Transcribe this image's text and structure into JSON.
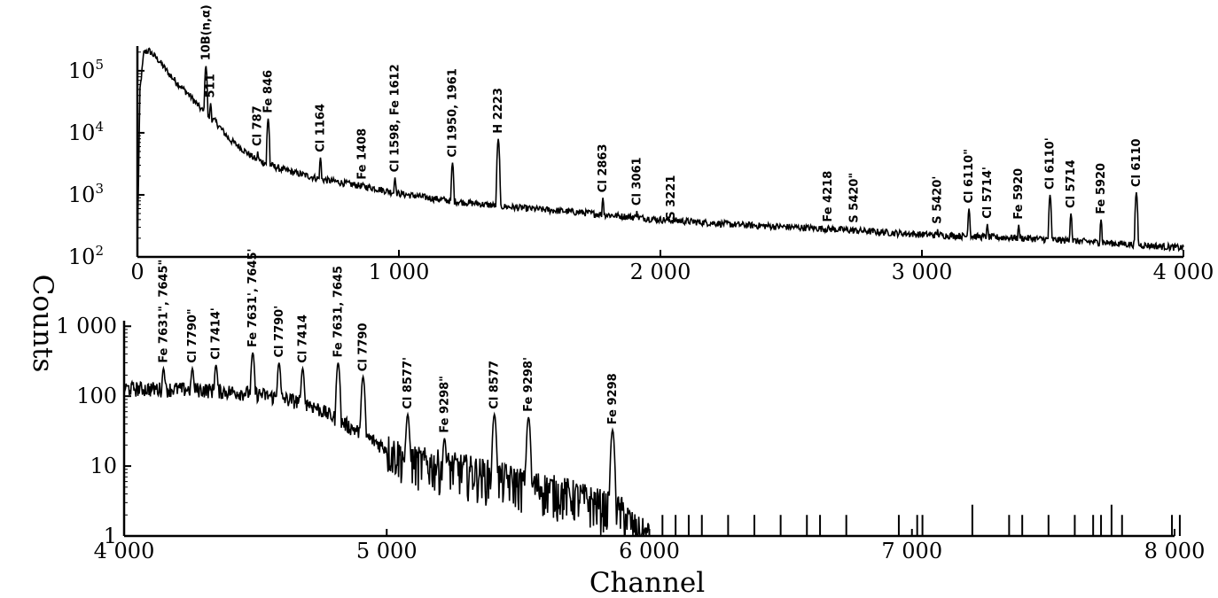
{
  "chart_data": [
    {
      "type": "line",
      "panel": "upper",
      "xlabel": "",
      "ylabel": "Counts",
      "xlim": [
        0,
        4000
      ],
      "ylim": [
        100,
        250000
      ],
      "y_scale": "log",
      "grid": false,
      "x_ticks": [
        {
          "value": 0,
          "label": "0"
        },
        {
          "value": 1000,
          "label": "1 000"
        },
        {
          "value": 2000,
          "label": "2 000"
        },
        {
          "value": 3000,
          "label": "3 000"
        },
        {
          "value": 4000,
          "label": "4 000"
        }
      ],
      "y_ticks": [
        {
          "value": 100,
          "base": "10",
          "exp": "2"
        },
        {
          "value": 1000,
          "base": "10",
          "exp": "3"
        },
        {
          "value": 10000,
          "base": "10",
          "exp": "4"
        },
        {
          "value": 100000,
          "base": "10",
          "exp": "5"
        }
      ],
      "baseline": [
        [
          0,
          150
        ],
        [
          10,
          50000
        ],
        [
          25,
          200000
        ],
        [
          45,
          210000
        ],
        [
          80,
          150000
        ],
        [
          130,
          80000
        ],
        [
          200,
          40000
        ],
        [
          260,
          20000
        ],
        [
          300,
          15000
        ],
        [
          350,
          8000
        ],
        [
          450,
          3800
        ],
        [
          550,
          2600
        ],
        [
          700,
          1800
        ],
        [
          900,
          1300
        ],
        [
          1000,
          1050
        ],
        [
          1200,
          800
        ],
        [
          1400,
          650
        ],
        [
          1700,
          520
        ],
        [
          2000,
          400
        ],
        [
          2300,
          330
        ],
        [
          2600,
          290
        ],
        [
          3000,
          230
        ],
        [
          3400,
          200
        ],
        [
          3700,
          170
        ],
        [
          3900,
          150
        ],
        [
          4000,
          140
        ]
      ],
      "peaks": [
        {
          "x": 262,
          "y": 120000,
          "label": "10B(n,α)"
        },
        {
          "x": 280,
          "y": 30000,
          "label": "511"
        },
        {
          "x": 460,
          "y": 5000,
          "label": "Cl 787"
        },
        {
          "x": 500,
          "y": 17000,
          "label": "Fe 846"
        },
        {
          "x": 700,
          "y": 4000,
          "label": "Cl 1164"
        },
        {
          "x": 860,
          "y": 1450,
          "label": "Fe 1408"
        },
        {
          "x": 985,
          "y": 1900,
          "label": "Cl 1598, Fe 1612"
        },
        {
          "x": 1205,
          "y": 3300,
          "label": "Cl 1950, 1961"
        },
        {
          "x": 1380,
          "y": 8000,
          "label": "H 2223"
        },
        {
          "x": 1780,
          "y": 900,
          "label": "Cl 2863"
        },
        {
          "x": 1910,
          "y": 550,
          "label": "Cl 3061"
        },
        {
          "x": 2040,
          "y": 330,
          "label": "S 3221"
        },
        {
          "x": 2640,
          "y": 300,
          "label": "Fe 4218"
        },
        {
          "x": 2740,
          "y": 290,
          "label": "S 5420\""
        },
        {
          "x": 3060,
          "y": 280,
          "label": "S 5420'"
        },
        {
          "x": 3180,
          "y": 600,
          "label": "Cl 6110\""
        },
        {
          "x": 3250,
          "y": 340,
          "label": "Cl 5714'"
        },
        {
          "x": 3370,
          "y": 330,
          "label": "Fe 5920"
        },
        {
          "x": 3490,
          "y": 1000,
          "label": "Cl 6110'"
        },
        {
          "x": 3570,
          "y": 500,
          "label": "Cl 5714"
        },
        {
          "x": 3685,
          "y": 400,
          "label": "Fe 5920"
        },
        {
          "x": 3820,
          "y": 1100,
          "label": "Cl 6110"
        }
      ]
    },
    {
      "type": "line",
      "panel": "lower",
      "xlabel": "Channel",
      "ylabel": "Counts",
      "xlim": [
        4000,
        8000
      ],
      "ylim": [
        1,
        1200
      ],
      "y_scale": "log",
      "grid": false,
      "x_ticks": [
        {
          "value": 4000,
          "label": "4 000"
        },
        {
          "value": 5000,
          "label": "5 000"
        },
        {
          "value": 6000,
          "label": "6 000"
        },
        {
          "value": 7000,
          "label": "7 000"
        },
        {
          "value": 8000,
          "label": "8 000"
        }
      ],
      "y_ticks": [
        {
          "value": 1,
          "label": "1"
        },
        {
          "value": 10,
          "label": "10"
        },
        {
          "value": 100,
          "label": "100"
        },
        {
          "value": 1000,
          "label": "1 000"
        }
      ],
      "baseline": [
        [
          4000,
          130
        ],
        [
          4300,
          125
        ],
        [
          4500,
          110
        ],
        [
          4700,
          80
        ],
        [
          4800,
          50
        ],
        [
          4900,
          30
        ],
        [
          5000,
          18
        ],
        [
          5100,
          12
        ],
        [
          5300,
          9
        ],
        [
          5500,
          6
        ],
        [
          5700,
          4
        ],
        [
          5800,
          3
        ],
        [
          5900,
          2.2
        ],
        [
          5950,
          1.2
        ],
        [
          6000,
          1
        ]
      ],
      "peaks": [
        {
          "x": 4150,
          "y": 250,
          "label": "Fe 7631\", 7645\""
        },
        {
          "x": 4260,
          "y": 250,
          "label": "Cl 7790\""
        },
        {
          "x": 4350,
          "y": 280,
          "label": "Cl 7414'"
        },
        {
          "x": 4490,
          "y": 420,
          "label": "Fe 7631', 7645'"
        },
        {
          "x": 4590,
          "y": 300,
          "label": "Cl 7790'"
        },
        {
          "x": 4680,
          "y": 250,
          "label": "Cl 7414"
        },
        {
          "x": 4815,
          "y": 300,
          "label": "Fe 7631, 7645"
        },
        {
          "x": 4910,
          "y": 190,
          "label": "Cl 7790"
        },
        {
          "x": 5080,
          "y": 55,
          "label": "Cl 8577'"
        },
        {
          "x": 5220,
          "y": 25,
          "label": "Fe 9298\""
        },
        {
          "x": 5410,
          "y": 55,
          "label": "Cl 8577"
        },
        {
          "x": 5540,
          "y": 50,
          "label": "Fe 9298'"
        },
        {
          "x": 5860,
          "y": 33,
          "label": "Fe 9298"
        }
      ],
      "sparse_counts": [
        [
          6050,
          2
        ],
        [
          6100,
          2
        ],
        [
          6150,
          2
        ],
        [
          6200,
          2
        ],
        [
          6300,
          2
        ],
        [
          6400,
          2
        ],
        [
          6500,
          2
        ],
        [
          6600,
          2
        ],
        [
          6650,
          2
        ],
        [
          6750,
          2
        ],
        [
          6950,
          2
        ],
        [
          7020,
          2
        ],
        [
          7040,
          2
        ],
        [
          7230,
          2.8
        ],
        [
          7370,
          2
        ],
        [
          7420,
          2
        ],
        [
          7520,
          2
        ],
        [
          7620,
          2
        ],
        [
          7690,
          2
        ],
        [
          7720,
          2
        ],
        [
          7760,
          2.8
        ],
        [
          7800,
          2
        ],
        [
          7990,
          2
        ],
        [
          8020,
          2
        ]
      ]
    }
  ]
}
